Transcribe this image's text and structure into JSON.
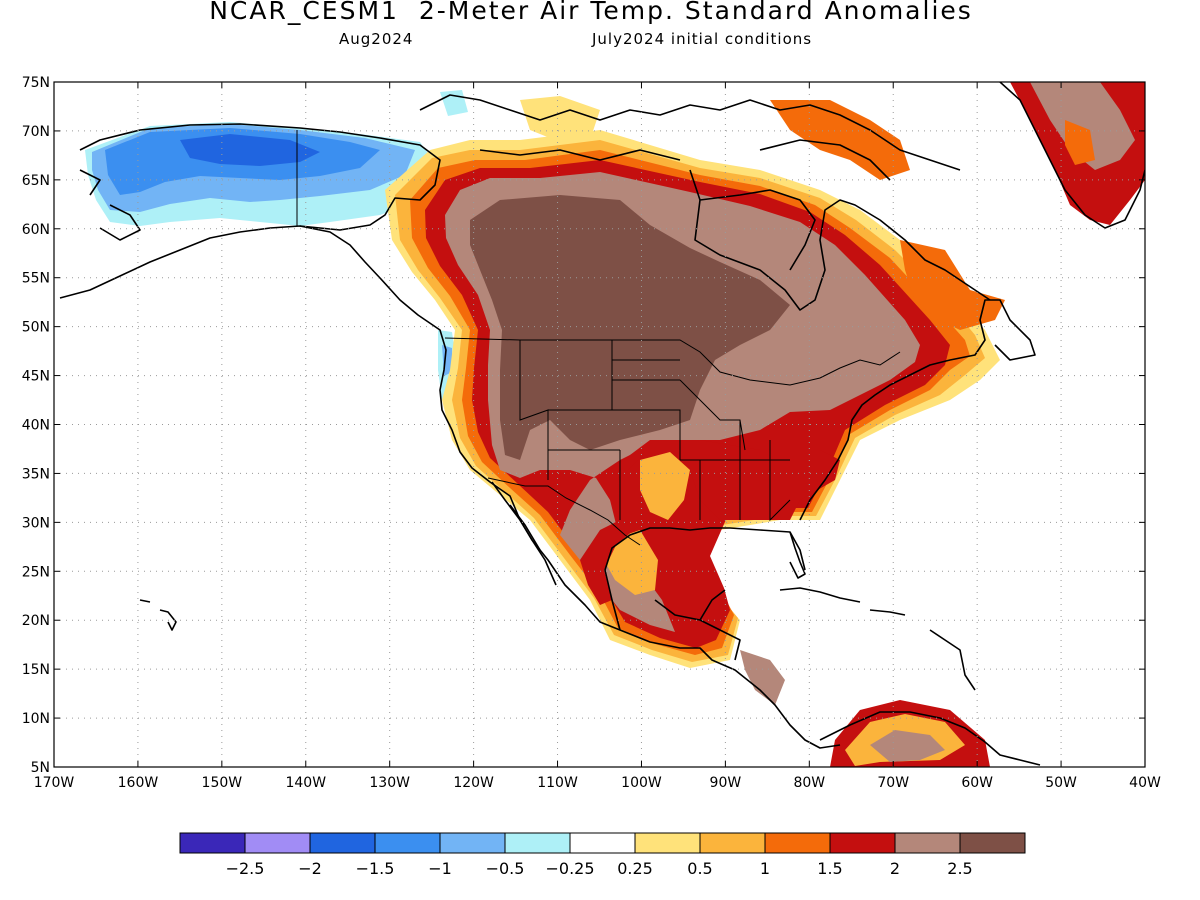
{
  "header": {
    "title": "NCAR_CESM1  2-Meter Air Temp. Standard Anomalies",
    "valid_month": "Aug2024",
    "init": "July2024 initial conditions"
  },
  "axes": {
    "lat_labels": [
      "75N",
      "70N",
      "65N",
      "60N",
      "55N",
      "50N",
      "45N",
      "40N",
      "35N",
      "30N",
      "25N",
      "20N",
      "15N",
      "10N",
      "5N"
    ],
    "lon_labels": [
      "170W",
      "160W",
      "150W",
      "140W",
      "130W",
      "120W",
      "110W",
      "100W",
      "90W",
      "80W",
      "70W",
      "60W",
      "50W",
      "40W"
    ],
    "lat_range": [
      5,
      75
    ],
    "lon_range": [
      -170,
      -40
    ],
    "grid": "dotted"
  },
  "colorbar": {
    "colors": [
      "#3a27b8",
      "#a18cf5",
      "#2065e0",
      "#3b8ff0",
      "#72b4f5",
      "#aef0f7",
      "#ffffff",
      "#ffe27a",
      "#fbb43c",
      "#f46b0a",
      "#c40f0f",
      "#b4877a",
      "#7e5046"
    ],
    "labels": [
      "-2.5",
      "-2",
      "-1.5",
      "-1",
      "-0.5",
      "-0.25",
      "0.25",
      "0.5",
      "1",
      "1.5",
      "2",
      "2.5"
    ]
  }
}
